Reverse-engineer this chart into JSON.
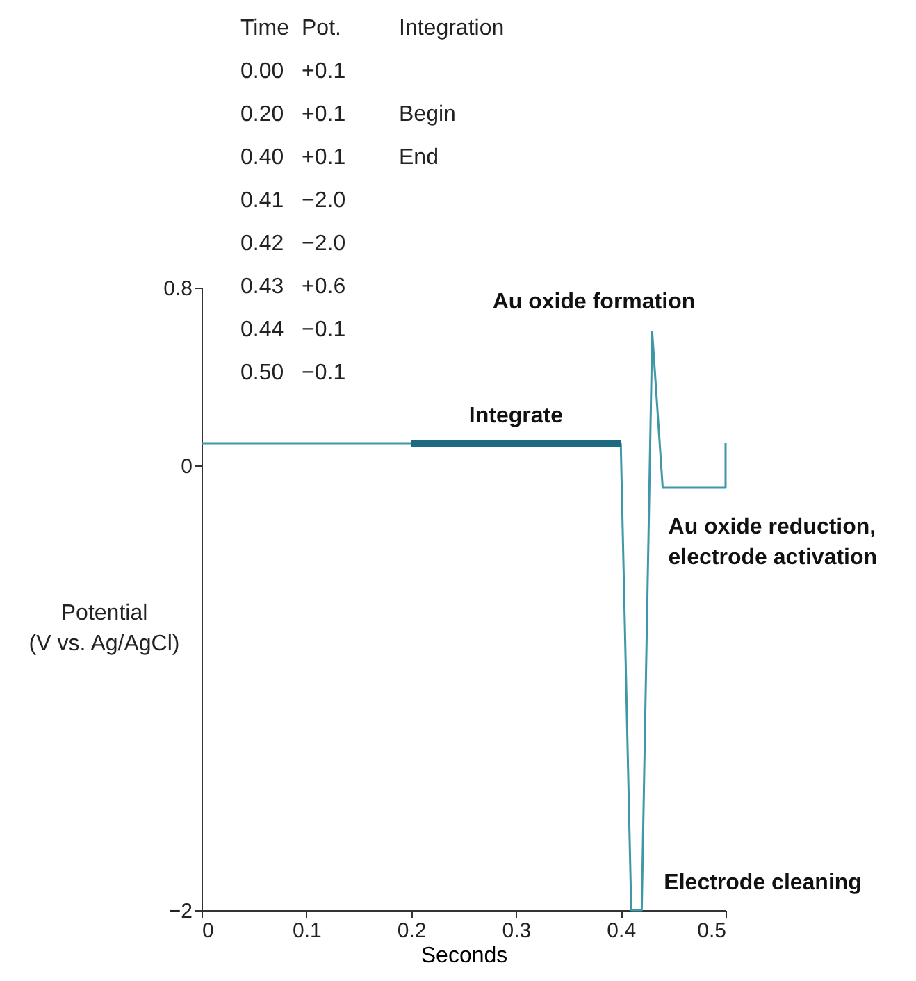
{
  "chart_data": {
    "type": "line",
    "xlabel": "Seconds",
    "ylabel": "Potential\n(V vs. Ag/AgCl)",
    "xlim": [
      0,
      0.5
    ],
    "xticks": [
      0,
      0.1,
      0.2,
      0.3,
      0.4,
      0.5
    ],
    "ylim": [
      -2,
      0.8
    ],
    "yticks": [
      {
        "value": -2,
        "label": "−2"
      },
      0,
      0.8
    ],
    "series": [
      {
        "color": "#3f98a8",
        "x": [
          0,
          0.4,
          0.41,
          0.42,
          0.43,
          0.44,
          0.5,
          0.5
        ],
        "values": [
          0.1,
          0.1,
          -2,
          -2,
          0.6,
          -0.1,
          -0.1,
          0.1
        ]
      },
      {
        "name": "Integrate",
        "color": "#1d6b82",
        "x": [
          0.2,
          0.4
        ],
        "values": [
          0.1,
          0.1
        ]
      }
    ],
    "annotations": [
      "Time Pot. Integration",
      "0.00 +0.1",
      "0.20 +0.1 Begin",
      "0.40 +0.1 End",
      "0.41 −2.0",
      "0.42 −2.0",
      "0.43 +0.6",
      "0.44 −0.1",
      "0.50 −0.1",
      {
        "text": "Au oxide formation",
        "x": 0.43,
        "y": 0.6
      },
      {
        "text": "Au oxide reduction,\nelectrode activation",
        "x": 0.44,
        "y": -0.1
      },
      {
        "text": "Electrode cleaning",
        "x": 0.42,
        "y": -2
      }
    ]
  }
}
